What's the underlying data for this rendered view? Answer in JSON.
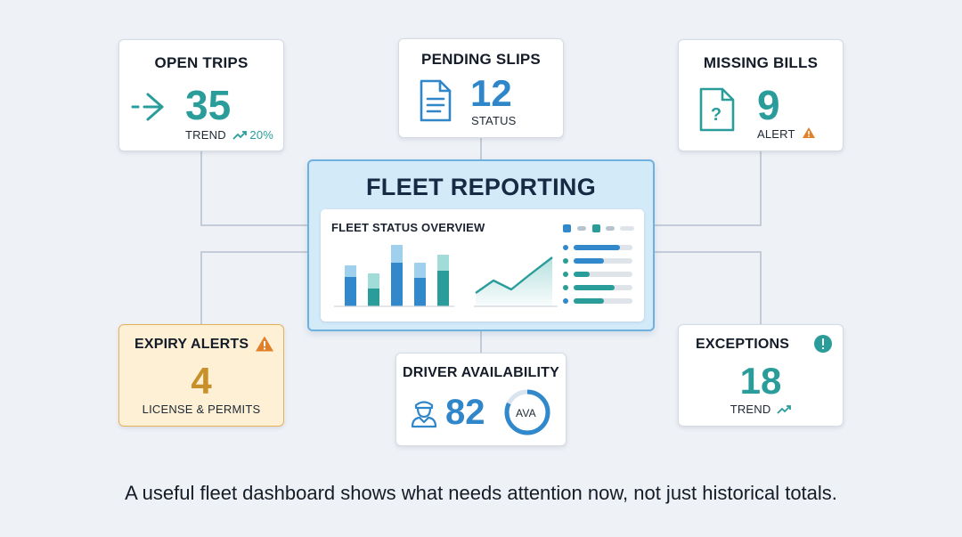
{
  "hub": {
    "title": "FLEET REPORTING",
    "panel_title": "FLEET STATUS OVERVIEW"
  },
  "cards": {
    "open_trips": {
      "title": "OPEN TRIPS",
      "value": "35",
      "sub_label": "TREND",
      "trend": "20%",
      "icon": "arrow-right-icon"
    },
    "pending_slips": {
      "title": "PENDING SLIPS",
      "value": "12",
      "sub_label": "STATUS",
      "icon": "document-icon"
    },
    "missing_bills": {
      "title": "MISSING BILLS",
      "value": "9",
      "sub_label": "ALERT",
      "icon": "question-document-icon"
    },
    "expiry_alerts": {
      "title": "EXPIRY ALERTS",
      "value": "4",
      "sub_label": "LICENSE & PERMITS",
      "icon": "warning-icon"
    },
    "driver_availability": {
      "title": "DRIVER AVAILABILITY",
      "value": "82",
      "gauge_label": "AVA",
      "icon": "driver-icon"
    },
    "exceptions": {
      "title": "EXCEPTIONS",
      "value": "18",
      "sub_label": "TREND",
      "icon": "exclamation-circle-icon"
    }
  },
  "caption": "A useful fleet dashboard shows what needs attention now, not just historical totals.",
  "colors": {
    "teal": "#2a9d9b",
    "blue": "#2f86c8",
    "amber": "#c8902a",
    "warning_orange": "#e0812a",
    "hub_bg": "#d3eaf9",
    "hub_border": "#6fb1de",
    "alert_bg": "#fdf0d5",
    "alert_border": "#e7b15c"
  }
}
